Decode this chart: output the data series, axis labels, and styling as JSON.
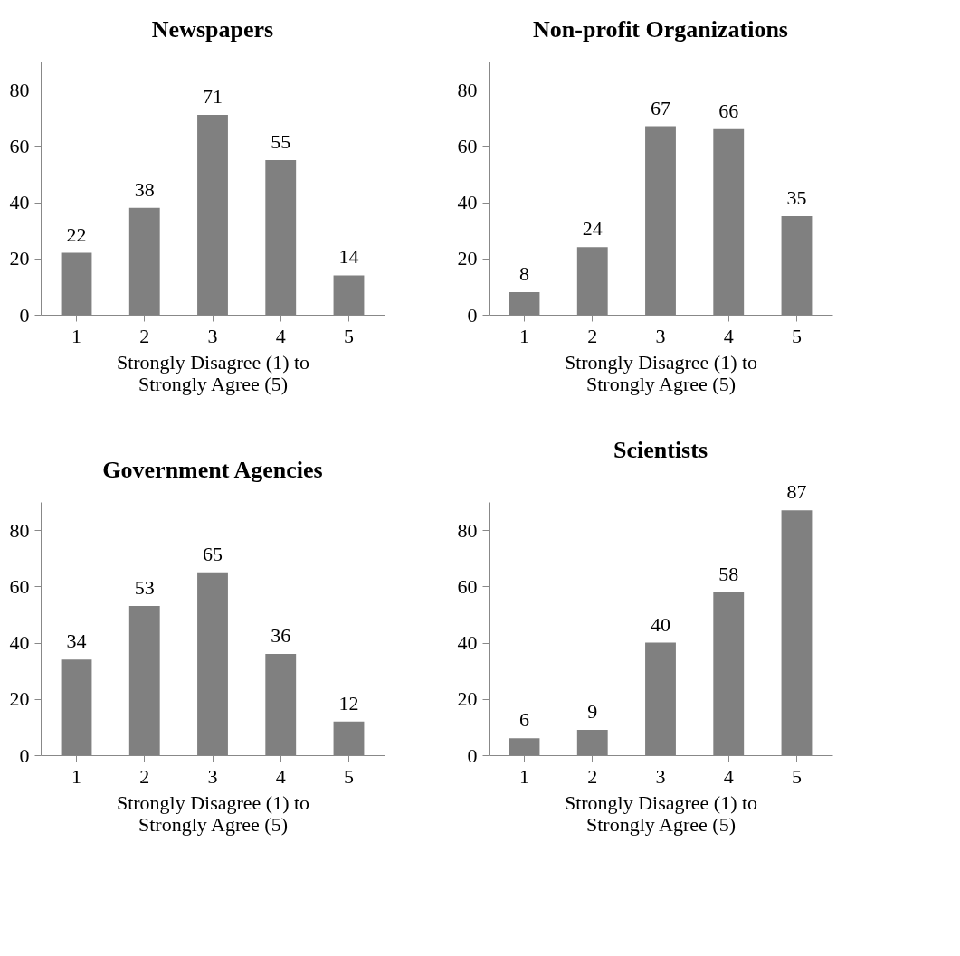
{
  "chart_data": [
    {
      "type": "bar",
      "title": "Newspapers",
      "xlabel": "Strongly Disagree (1) to\nStrongly Agree (5)",
      "categories": [
        "1",
        "2",
        "3",
        "4",
        "5"
      ],
      "values": [
        22,
        38,
        71,
        55,
        14
      ],
      "color": "#808080",
      "ylim": [
        0,
        90
      ],
      "yticks": [
        0,
        20,
        40,
        60,
        80
      ],
      "grid": false,
      "data_labels": true
    },
    {
      "type": "bar",
      "title": "Non-profit Organizations",
      "xlabel": "Strongly Disagree (1) to\nStrongly Agree (5)",
      "categories": [
        "1",
        "2",
        "3",
        "4",
        "5"
      ],
      "values": [
        8,
        24,
        67,
        66,
        35
      ],
      "color": "#808080",
      "ylim": [
        0,
        90
      ],
      "yticks": [
        0,
        20,
        40,
        60,
        80
      ],
      "grid": false,
      "data_labels": true
    },
    {
      "type": "bar",
      "title": "Government Agencies",
      "xlabel": "Strongly Disagree (1) to\nStrongly Agree (5)",
      "categories": [
        "1",
        "2",
        "3",
        "4",
        "5"
      ],
      "values": [
        34,
        53,
        65,
        36,
        12
      ],
      "color": "#808080",
      "ylim": [
        0,
        90
      ],
      "yticks": [
        0,
        20,
        40,
        60,
        80
      ],
      "grid": false,
      "data_labels": true
    },
    {
      "type": "bar",
      "title": "Scientists",
      "xlabel": "Strongly Disagree (1) to\nStrongly Agree (5)",
      "categories": [
        "1",
        "2",
        "3",
        "4",
        "5"
      ],
      "values": [
        6,
        9,
        40,
        58,
        87
      ],
      "color": "#808080",
      "ylim": [
        0,
        90
      ],
      "yticks": [
        0,
        20,
        40,
        60,
        80
      ],
      "grid": false,
      "data_labels": true
    }
  ]
}
